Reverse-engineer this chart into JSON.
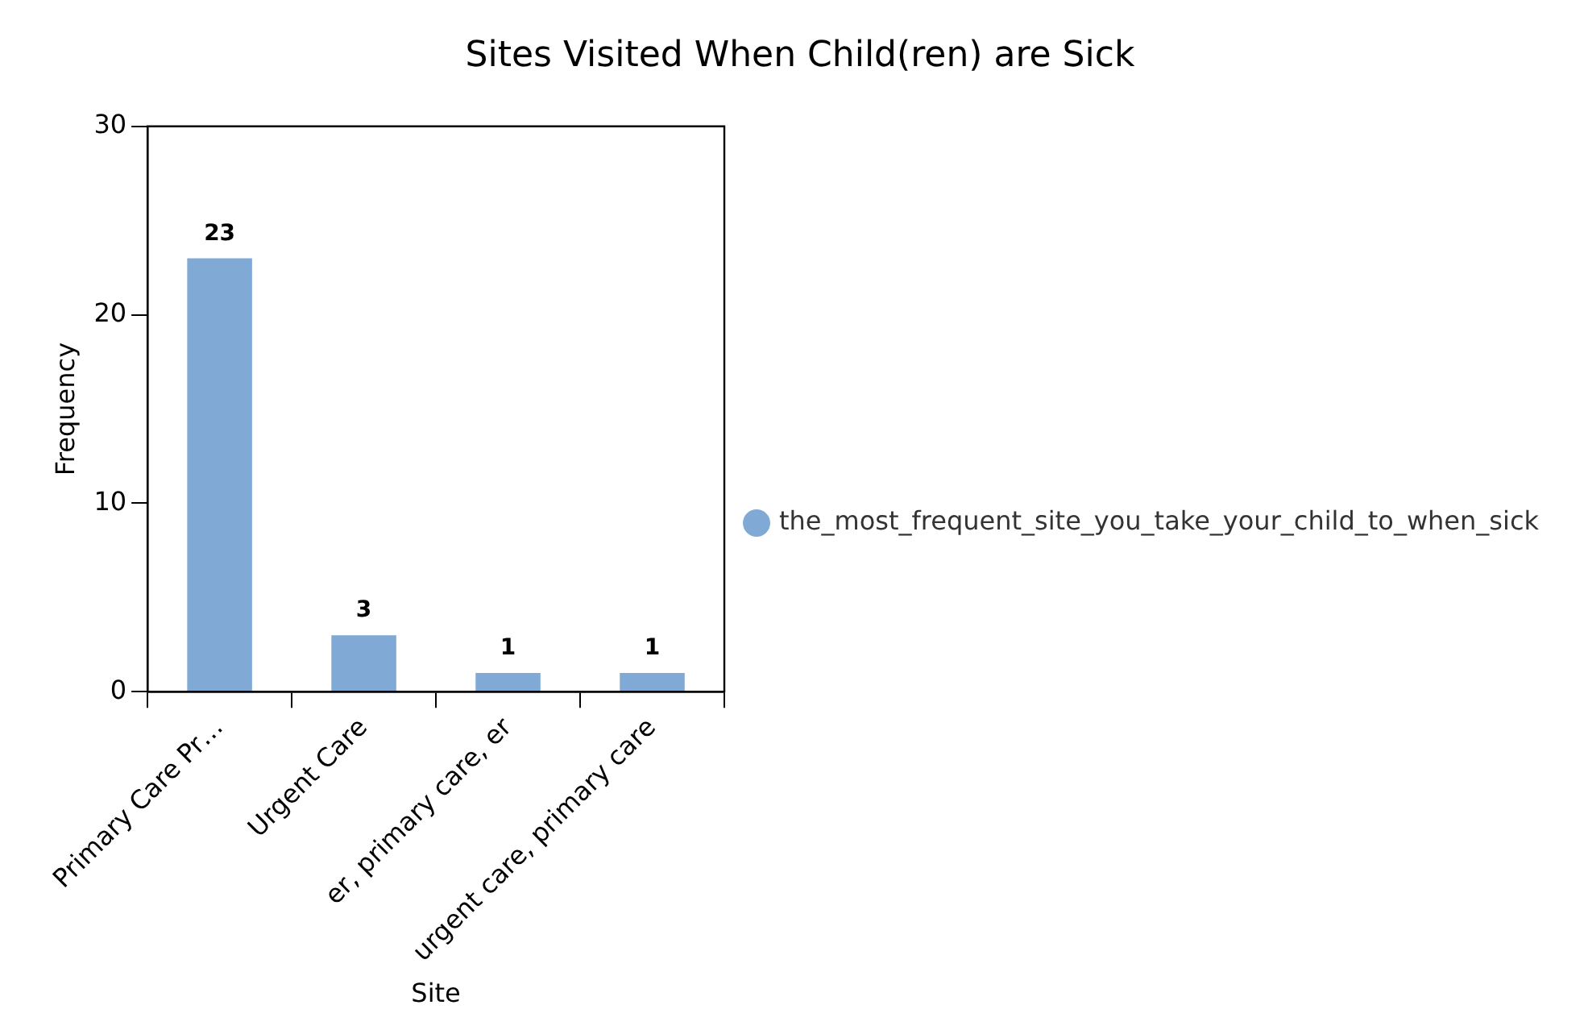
{
  "chart_data": {
    "type": "bar",
    "title": "Sites Visited When Child(ren) are Sick",
    "xlabel": "Site",
    "ylabel": "Frequency",
    "categories": [
      "Primary Care Pr…",
      "Urgent Care",
      "er, primary care, er",
      "urgent care, primary care"
    ],
    "series": [
      {
        "name": "the_most_frequent_site_you_take_your_child_to_when_sick",
        "color": "#80aad5",
        "values": [
          23,
          3,
          1,
          1
        ]
      }
    ],
    "ylim": [
      0,
      30
    ],
    "yticks": [
      0,
      10,
      20,
      30
    ],
    "grid": false,
    "legend": "right",
    "marker": "circle",
    "data_labels": true
  }
}
